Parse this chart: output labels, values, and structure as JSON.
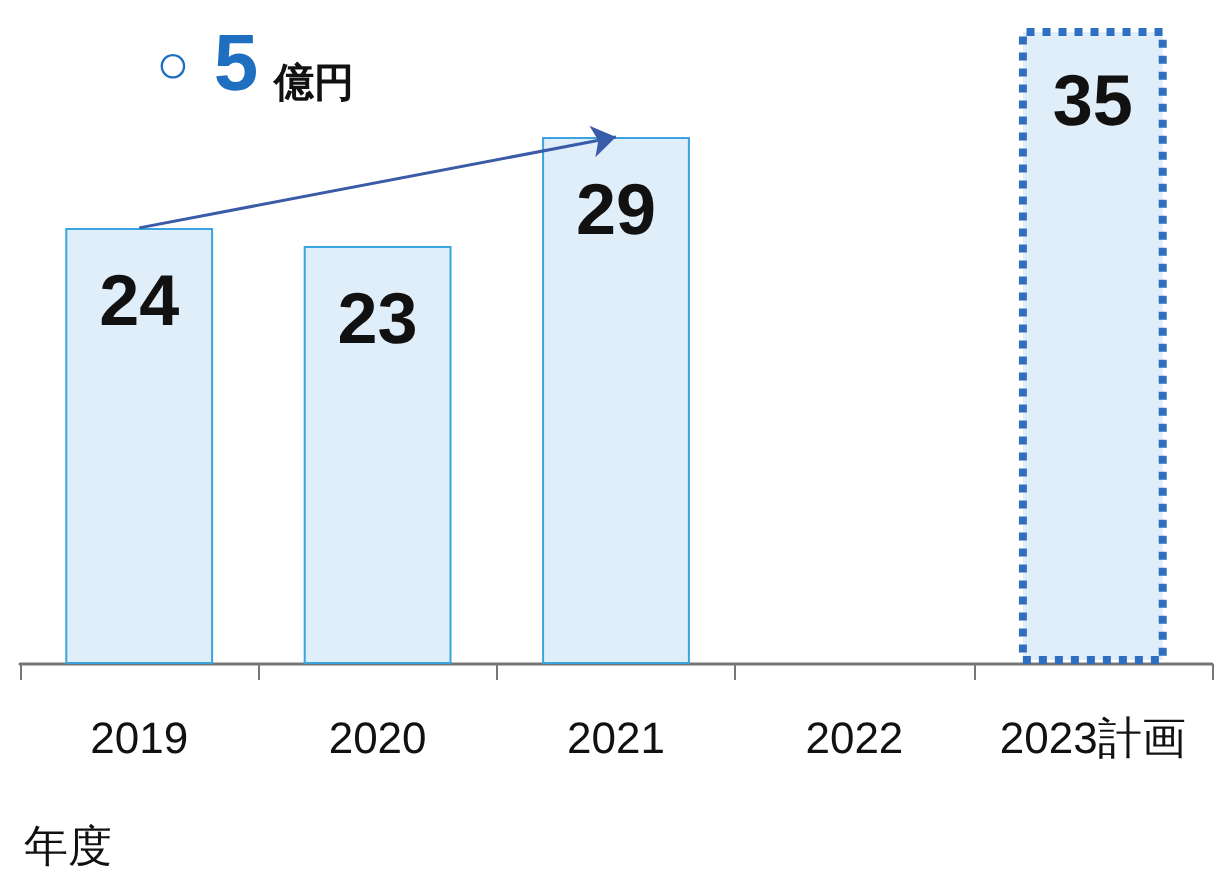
{
  "chart_data": {
    "type": "bar",
    "categories": [
      "2019",
      "2020",
      "2021",
      "2022",
      "2023計画"
    ],
    "values": [
      24,
      23,
      29,
      null,
      35
    ],
    "colors": [
      "#e0eef9",
      "#e0eef9",
      "#e0eef9",
      "#e0eef9",
      "#e0eef9"
    ],
    "xlabel": "年度",
    "annotations": [
      "○ 5 億円"
    ],
    "data_labels": true
  }
}
